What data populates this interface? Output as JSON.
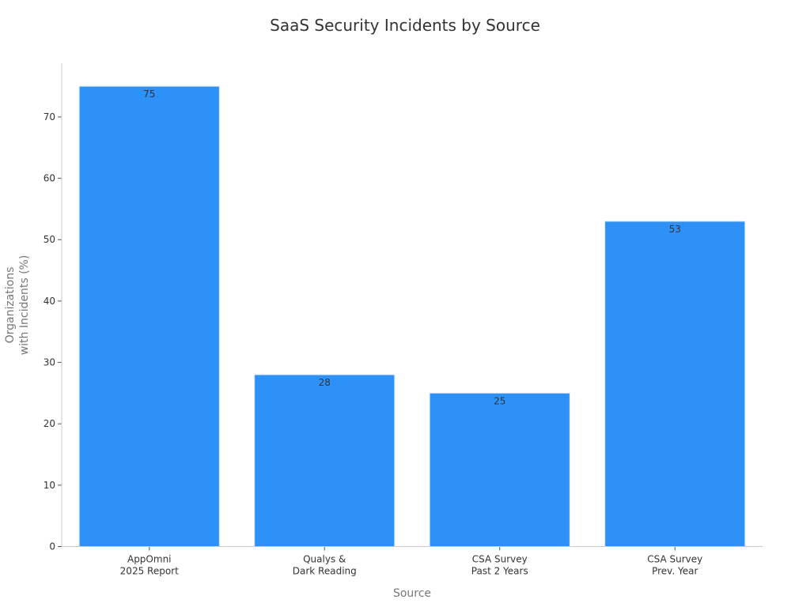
{
  "chart_data": {
    "type": "bar",
    "title": "SaaS Security Incidents by Source",
    "xlabel": "Source",
    "ylabel": [
      "Organizations",
      "with Incidents (%)"
    ],
    "categories": [
      [
        "AppOmni",
        "2025 Report"
      ],
      [
        "Qualys &",
        "Dark Reading"
      ],
      [
        "CSA Survey",
        "Past 2 Years"
      ],
      [
        "CSA Survey",
        "Prev. Year"
      ]
    ],
    "values": [
      75,
      28,
      25,
      53
    ],
    "data_labels": [
      "75",
      "28",
      "25",
      "53"
    ],
    "yticks": [
      0,
      10,
      20,
      30,
      40,
      50,
      60,
      70
    ],
    "ylim": [
      0,
      78.75
    ],
    "grid": false,
    "bar_color": "#2e91f8",
    "bar_edge_color": "#d7e9fd",
    "axis_color": "#cccccc"
  }
}
